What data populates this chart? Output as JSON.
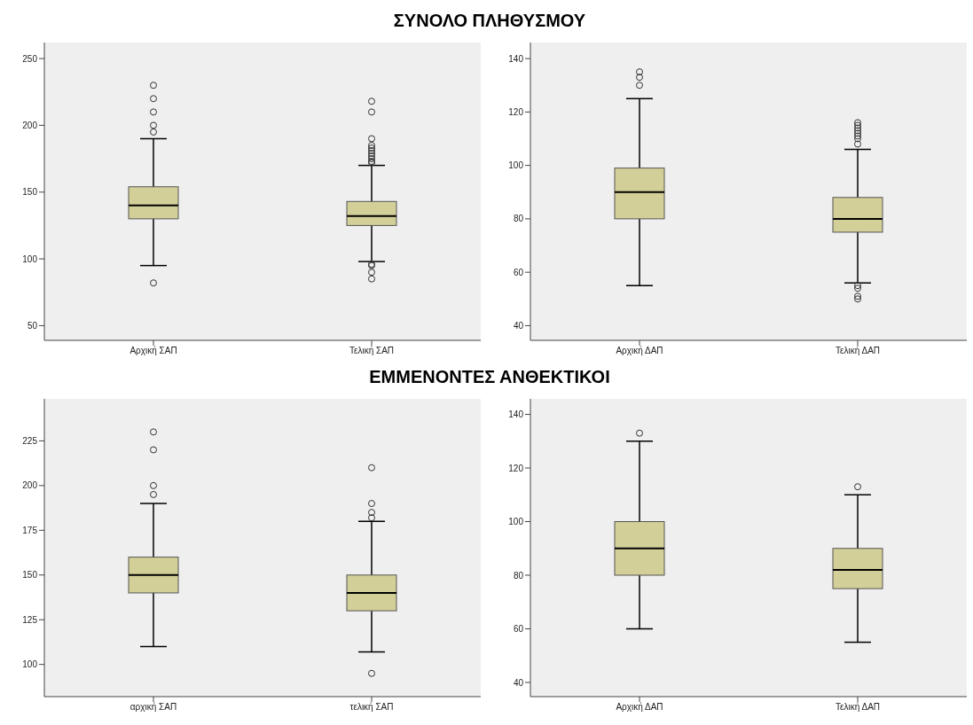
{
  "chart_data": [
    {
      "type": "box",
      "title": "ΣΥΝΟΛΟ ΠΛΗΘΥΣΜΟΥ",
      "categories": [
        "Αρχική ΣΑΠ",
        "Τελική ΣΑΠ"
      ],
      "color": "#d3cf98",
      "marker": "circle",
      "ylim": [
        39,
        262
      ],
      "yticks": [
        50,
        100,
        150,
        200,
        250
      ],
      "boxes": [
        {
          "low": 95,
          "q1": 130,
          "median": 140,
          "q3": 154,
          "high": 190,
          "outliers": [
            230,
            220,
            210,
            200,
            195,
            82
          ]
        },
        {
          "low": 98,
          "q1": 125,
          "median": 132,
          "q3": 143,
          "high": 170,
          "outliers": [
            218,
            210,
            190,
            185,
            183,
            181,
            179,
            177,
            175,
            173,
            172,
            96,
            95,
            90,
            85
          ]
        }
      ]
    },
    {
      "type": "box",
      "categories": [
        "Αρχική ΔΑΠ",
        "Τελική ΔΑΠ"
      ],
      "color": "#d3cf98",
      "marker": "circle",
      "ylim": [
        34.5,
        146
      ],
      "yticks": [
        40,
        60,
        80,
        100,
        120,
        140
      ],
      "boxes": [
        {
          "low": 55,
          "q1": 80,
          "median": 90,
          "q3": 99,
          "high": 125,
          "outliers": [
            135,
            133,
            130
          ]
        },
        {
          "low": 56,
          "q1": 75,
          "median": 80,
          "q3": 88,
          "high": 106,
          "outliers": [
            116,
            115,
            114,
            113,
            112,
            111,
            110,
            108,
            55,
            54,
            51,
            50
          ]
        }
      ]
    },
    {
      "type": "box",
      "title": "ΕΜΜΕΝΟΝΤΕΣ ΑΝΘΕΚΤΙΚΟΙ",
      "categories": [
        "αρχική ΣΑΠ",
        "τελική ΣΑΠ"
      ],
      "color": "#d3cf98",
      "marker": "circle",
      "ylim": [
        82,
        248.5
      ],
      "yticks": [
        100,
        125,
        150,
        175,
        200,
        225
      ],
      "boxes": [
        {
          "low": 110,
          "q1": 140,
          "median": 150,
          "q3": 160,
          "high": 190,
          "outliers": [
            230,
            220,
            200,
            195
          ]
        },
        {
          "low": 107,
          "q1": 130,
          "median": 140,
          "q3": 150,
          "high": 180,
          "outliers": [
            210,
            190,
            185,
            182,
            95
          ]
        }
      ]
    },
    {
      "type": "box",
      "categories": [
        "Αρχική ΔΑΠ",
        "Τελική ΔΑΠ"
      ],
      "color": "#d3cf98",
      "marker": "circle",
      "ylim": [
        34.7,
        145.8
      ],
      "yticks": [
        40,
        60,
        80,
        100,
        120,
        140
      ],
      "boxes": [
        {
          "low": 60,
          "q1": 80,
          "median": 90,
          "q3": 100,
          "high": 130,
          "outliers": [
            133
          ]
        },
        {
          "low": 55,
          "q1": 75,
          "median": 82,
          "q3": 90,
          "high": 110,
          "outliers": [
            113
          ]
        }
      ]
    }
  ]
}
